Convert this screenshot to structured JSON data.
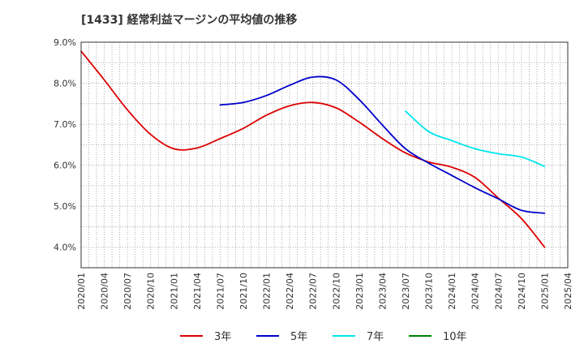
{
  "chart_data": {
    "type": "line",
    "title": "[1433]  経常利益マージンの平均値の推移",
    "xlabel": "",
    "ylabel": "",
    "ylim": [
      3.5,
      9.0
    ],
    "yticks": [
      4.0,
      5.0,
      6.0,
      7.0,
      8.0,
      9.0
    ],
    "ytick_labels": [
      "4.0%",
      "5.0%",
      "6.0%",
      "7.0%",
      "8.0%",
      "9.0%"
    ],
    "x": [
      "2020/01",
      "2020/04",
      "2020/07",
      "2020/10",
      "2021/01",
      "2021/04",
      "2021/07",
      "2021/10",
      "2022/01",
      "2022/04",
      "2022/07",
      "2022/10",
      "2023/01",
      "2023/04",
      "2023/07",
      "2023/10",
      "2024/01",
      "2024/04",
      "2024/07",
      "2024/10",
      "2025/01",
      "2025/04"
    ],
    "grid": true,
    "legend_position": "bottom",
    "series": [
      {
        "name": "3年",
        "color": "#dd0000",
        "values": [
          8.78,
          8.08,
          7.35,
          6.75,
          6.4,
          6.42,
          6.65,
          6.9,
          7.22,
          7.45,
          7.53,
          7.4,
          7.05,
          6.65,
          6.3,
          6.08,
          5.95,
          5.7,
          5.2,
          4.7,
          4.0,
          null
        ]
      },
      {
        "name": "5年",
        "color": "#0000cc",
        "values": [
          null,
          null,
          null,
          null,
          null,
          null,
          7.47,
          7.53,
          7.7,
          7.95,
          8.15,
          8.08,
          7.6,
          6.98,
          6.4,
          6.05,
          5.75,
          5.45,
          5.18,
          4.9,
          4.83,
          null
        ]
      },
      {
        "name": "7年",
        "color": "#00e5ee",
        "values": [
          null,
          null,
          null,
          null,
          null,
          null,
          null,
          null,
          null,
          null,
          null,
          null,
          null,
          null,
          7.32,
          6.82,
          6.6,
          6.4,
          6.28,
          6.2,
          5.97,
          null
        ]
      },
      {
        "name": "10年",
        "color": "#008000",
        "values": [
          null,
          null,
          null,
          null,
          null,
          null,
          null,
          null,
          null,
          null,
          null,
          null,
          null,
          null,
          null,
          null,
          null,
          null,
          null,
          null,
          null,
          null
        ]
      }
    ]
  }
}
